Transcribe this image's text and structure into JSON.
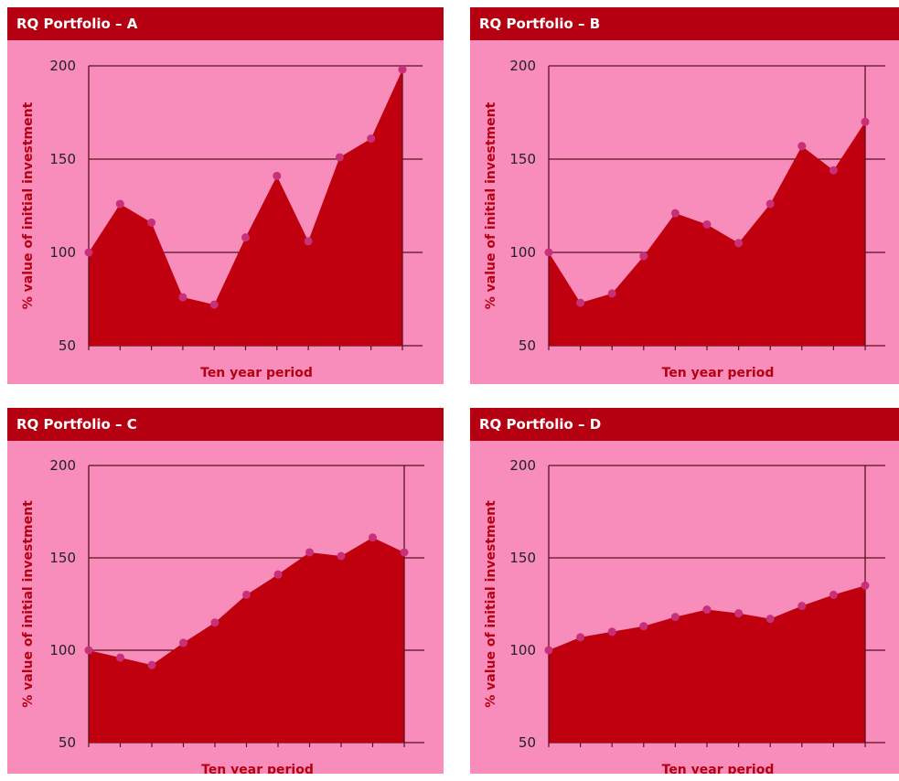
{
  "colors": {
    "panel_bg": "#f88cba",
    "header_bg": "#b50012",
    "area_fill": "#c1000f",
    "point": "#c8307a",
    "grid": "#5a1020"
  },
  "chart_data": [
    {
      "type": "area",
      "title": "RQ Portfolio – A",
      "xlabel": "Ten year period",
      "ylabel": "% value of initial investment",
      "ylim": [
        50,
        200
      ],
      "yticks": [
        50,
        100,
        150,
        200
      ],
      "x": [
        0,
        1,
        2,
        3,
        4,
        5,
        6,
        7,
        8,
        9,
        10
      ],
      "values": [
        100,
        126,
        116,
        76,
        72,
        108,
        141,
        106,
        151,
        161,
        198
      ]
    },
    {
      "type": "area",
      "title": "RQ Portfolio – B",
      "xlabel": "Ten year period",
      "ylabel": "% value of initial investment",
      "ylim": [
        50,
        200
      ],
      "yticks": [
        50,
        100,
        150,
        200
      ],
      "x": [
        0,
        1,
        2,
        3,
        4,
        5,
        6,
        7,
        8,
        9,
        10
      ],
      "values": [
        100,
        73,
        78,
        98,
        121,
        115,
        105,
        126,
        157,
        144,
        170
      ]
    },
    {
      "type": "area",
      "title": "RQ Portfolio – C",
      "xlabel": "Ten year period",
      "ylabel": "% value of initial investment",
      "ylim": [
        50,
        200
      ],
      "yticks": [
        50,
        100,
        150,
        200
      ],
      "x": [
        0,
        1,
        2,
        3,
        4,
        5,
        6,
        7,
        8,
        9,
        10
      ],
      "values": [
        100,
        96,
        92,
        104,
        115,
        130,
        141,
        153,
        151,
        161,
        153
      ]
    },
    {
      "type": "area",
      "title": "RQ Portfolio – D",
      "xlabel": "Ten year period",
      "ylabel": "% value of initial investment",
      "ylim": [
        50,
        200
      ],
      "yticks": [
        50,
        100,
        150,
        200
      ],
      "x": [
        0,
        1,
        2,
        3,
        4,
        5,
        6,
        7,
        8,
        9,
        10
      ],
      "values": [
        100,
        107,
        110,
        113,
        118,
        122,
        120,
        117,
        124,
        130,
        135
      ]
    }
  ]
}
